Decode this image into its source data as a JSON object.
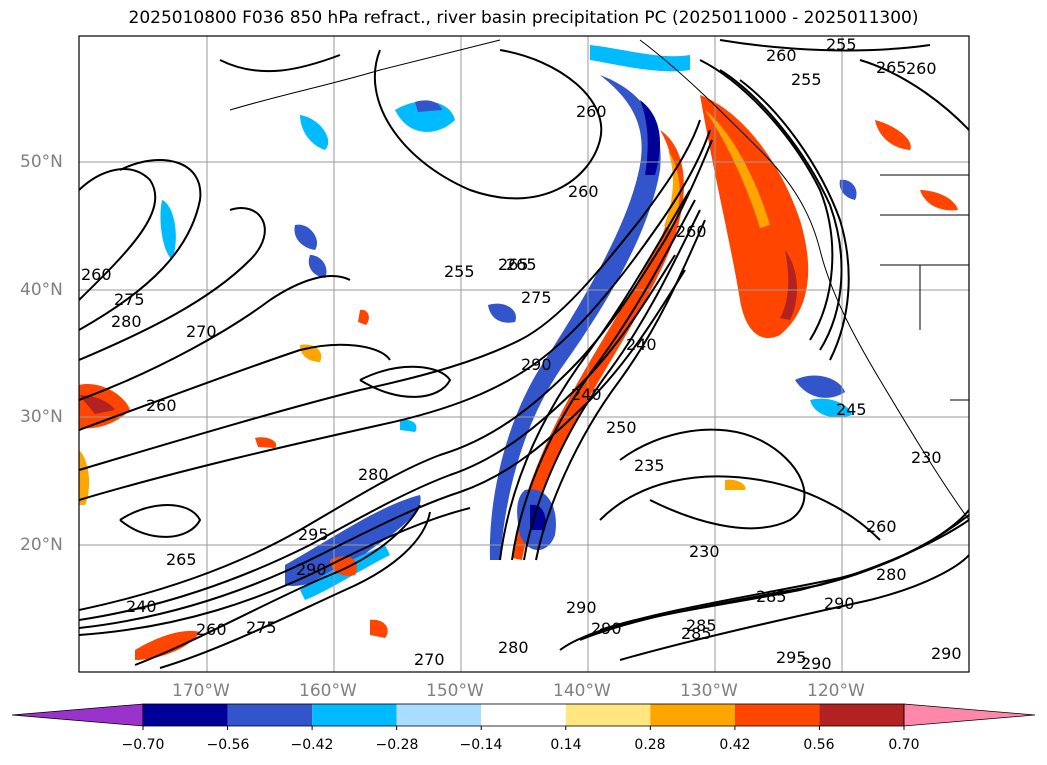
{
  "title": "2025010800 F036 850 hPa refract., river basin precipitation PC (2025011000 - 2025011300)",
  "axes": {
    "lat_labels": [
      "50°N",
      "40°N",
      "30°N",
      "20°N"
    ],
    "lon_labels": [
      "170°W",
      "160°W",
      "150°W",
      "140°W",
      "130°W",
      "120°W"
    ]
  },
  "colorbar": {
    "colors": [
      "#9933cc",
      "#000099",
      "#3355cc",
      "#00bbff",
      "#aaddff",
      "#ffffff",
      "#ffe680",
      "#ffa500",
      "#ff4500",
      "#b22222",
      "#ff88aa"
    ],
    "tick_labels": [
      "−0.70",
      "−0.56",
      "−0.42",
      "−0.28",
      "−0.14",
      "0.14",
      "0.28",
      "0.42",
      "0.56",
      "0.70"
    ]
  },
  "contour_labels": [
    "260",
    "255",
    "265",
    "260",
    "255",
    "260",
    "265",
    "260",
    "275",
    "280",
    "270",
    "260",
    "255",
    "265",
    "260",
    "275",
    "290",
    "240",
    "250",
    "235",
    "240",
    "260",
    "230",
    "280",
    "295",
    "290",
    "265",
    "240",
    "285",
    "290",
    "285",
    "290",
    "295",
    "290",
    "270",
    "280",
    "275",
    "260",
    "245",
    "280",
    "260",
    "230",
    "290",
    "285",
    "290"
  ]
}
